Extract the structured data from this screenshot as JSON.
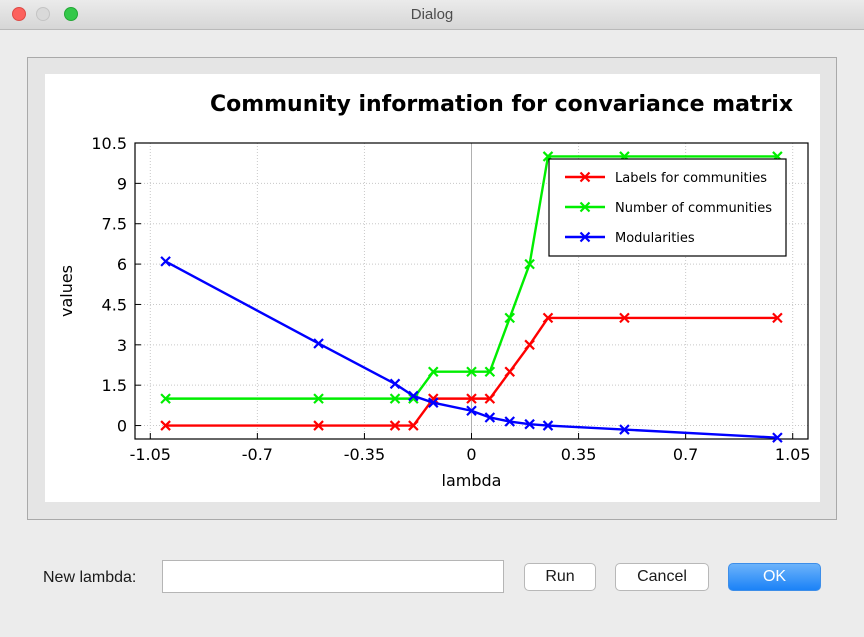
{
  "window": {
    "title": "Dialog"
  },
  "chart_data": {
    "type": "line",
    "title": "Community information for convariance matrix",
    "xlabel": "lambda",
    "ylabel": "values",
    "xlim": [
      -1.1,
      1.1
    ],
    "ylim": [
      -0.5,
      10.5
    ],
    "xticks": [
      -1.05,
      -0.7,
      -0.35,
      0,
      0.35,
      0.7,
      1.05
    ],
    "xtick_labels": [
      "-1.05",
      "-0.7",
      "-0.35",
      "0",
      "0.35",
      "0.7",
      "1.05"
    ],
    "yticks": [
      0,
      1.5,
      3,
      4.5,
      6,
      7.5,
      9,
      10.5
    ],
    "ytick_labels": [
      "0",
      "1.5",
      "3",
      "4.5",
      "6",
      "7.5",
      "9",
      "10.5"
    ],
    "grid": true,
    "legend_position": "top-right",
    "series": [
      {
        "name": "Labels for communities",
        "color": "#ff0000",
        "points": [
          [
            -1.0,
            0
          ],
          [
            -0.5,
            0
          ],
          [
            -0.25,
            0
          ],
          [
            -0.19,
            0
          ],
          [
            -0.125,
            1
          ],
          [
            0,
            1
          ],
          [
            0.06,
            1
          ],
          [
            0.125,
            2
          ],
          [
            0.19,
            3
          ],
          [
            0.25,
            4
          ],
          [
            0.5,
            4
          ],
          [
            1.0,
            4
          ]
        ]
      },
      {
        "name": "Number of communities",
        "color": "#00ee00",
        "points": [
          [
            -1.0,
            1
          ],
          [
            -0.5,
            1
          ],
          [
            -0.25,
            1
          ],
          [
            -0.19,
            1
          ],
          [
            -0.125,
            2
          ],
          [
            0,
            2
          ],
          [
            0.06,
            2
          ],
          [
            0.125,
            4
          ],
          [
            0.19,
            6
          ],
          [
            0.25,
            10
          ],
          [
            0.5,
            10
          ],
          [
            1.0,
            10
          ]
        ]
      },
      {
        "name": "Modularities",
        "color": "#0000ff",
        "points": [
          [
            -1.0,
            6.1
          ],
          [
            -0.5,
            3.05
          ],
          [
            -0.25,
            1.55
          ],
          [
            -0.19,
            1.1
          ],
          [
            -0.125,
            0.85
          ],
          [
            0,
            0.55
          ],
          [
            0.06,
            0.3
          ],
          [
            0.125,
            0.15
          ],
          [
            0.19,
            0.05
          ],
          [
            0.25,
            0.0
          ],
          [
            0.5,
            -0.15
          ],
          [
            1.0,
            -0.45
          ]
        ]
      }
    ]
  },
  "form": {
    "lambda_label": "New lambda:",
    "lambda_value": ""
  },
  "buttons": {
    "run": "Run",
    "cancel": "Cancel",
    "ok": "OK"
  }
}
